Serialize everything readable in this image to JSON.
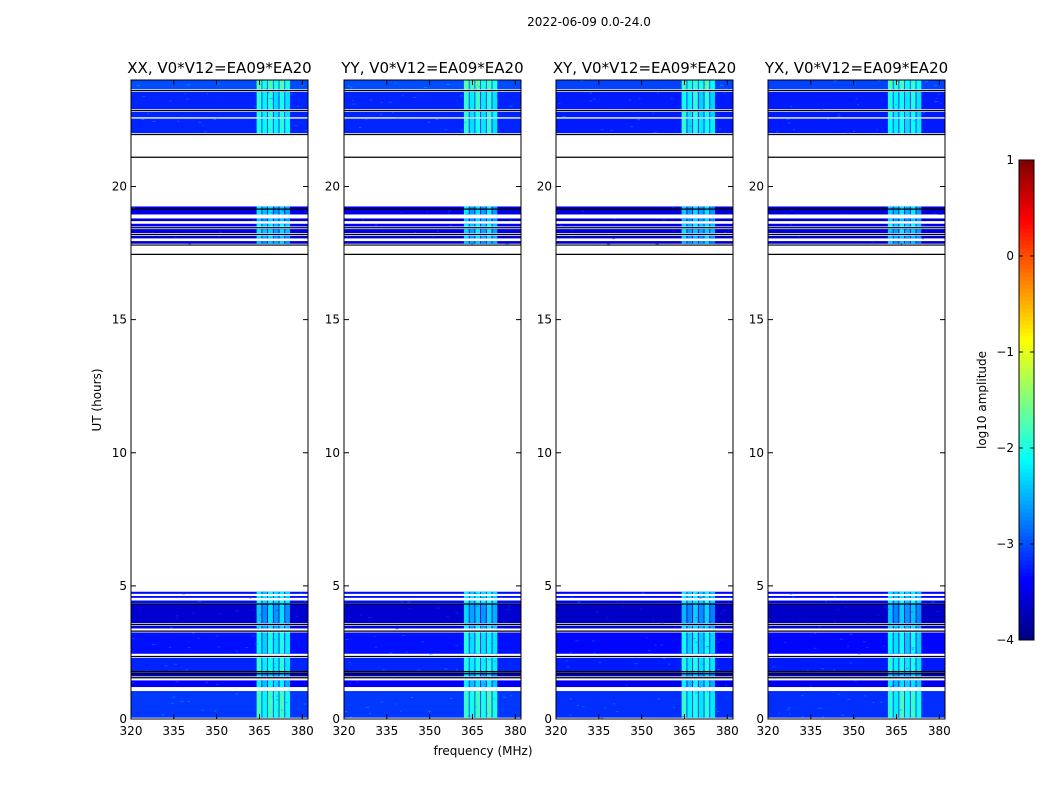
{
  "figure": {
    "suptitle": "2022-06-09 0.0-24.0",
    "xlabel": "frequency (MHz)",
    "ylabel": "UT (hours)",
    "colorbar_label": "log10 amplitude"
  },
  "chart_data": {
    "type": "heatmap",
    "xlim": [
      320,
      382
    ],
    "ylim": [
      0,
      24
    ],
    "x_ticks": [
      320,
      335,
      350,
      365,
      380
    ],
    "y_ticks": [
      0,
      5,
      10,
      15,
      20
    ],
    "colorbar": {
      "range": [
        -4,
        1
      ],
      "ticks": [
        -4,
        -3,
        -2,
        -1,
        0,
        1
      ],
      "tick_labels": [
        "−4",
        "−3",
        "−2",
        "−1",
        "0",
        "1"
      ],
      "colormap": "jet"
    },
    "panels": [
      {
        "title": "XX, V0*V12=EA09*EA20",
        "highlight": [
          364,
          376
        ],
        "base_level": -3.2
      },
      {
        "title": "YY, V0*V12=EA09*EA20",
        "highlight": [
          362,
          374
        ],
        "base_level": -3.2
      },
      {
        "title": "XY, V0*V12=EA09*EA20",
        "highlight": [
          364,
          376
        ],
        "base_level": -3.3
      },
      {
        "title": "YX, V0*V12=EA09*EA20",
        "highlight": [
          362,
          374
        ],
        "base_level": -3.3
      }
    ],
    "data_blocks_hours": [
      [
        0.05,
        1.05,
        -3.1
      ],
      [
        1.2,
        1.45,
        -3.4
      ],
      [
        1.6,
        1.75,
        -3.6
      ],
      [
        1.8,
        2.3,
        -3.2
      ],
      [
        2.45,
        3.25,
        -3.3
      ],
      [
        3.4,
        3.5,
        -3.5
      ],
      [
        3.6,
        4.3,
        -3.6
      ],
      [
        4.35,
        4.45,
        -3.3
      ],
      [
        4.55,
        4.62,
        -3.3
      ],
      [
        4.7,
        4.78,
        -3.3
      ],
      [
        17.85,
        17.95,
        -3.6
      ],
      [
        18.05,
        18.15,
        -3.6
      ],
      [
        18.25,
        18.4,
        -3.5
      ],
      [
        18.5,
        18.6,
        -3.4
      ],
      [
        18.7,
        18.8,
        -3.6
      ],
      [
        18.95,
        19.25,
        -3.5
      ],
      [
        22.0,
        22.55,
        -3.2
      ],
      [
        22.6,
        22.8,
        -3.2
      ],
      [
        22.9,
        23.55,
        -3.2
      ],
      [
        23.65,
        24.0,
        -3.0
      ]
    ]
  },
  "colors": {
    "background": "#ffffff",
    "axes": "#000000"
  }
}
